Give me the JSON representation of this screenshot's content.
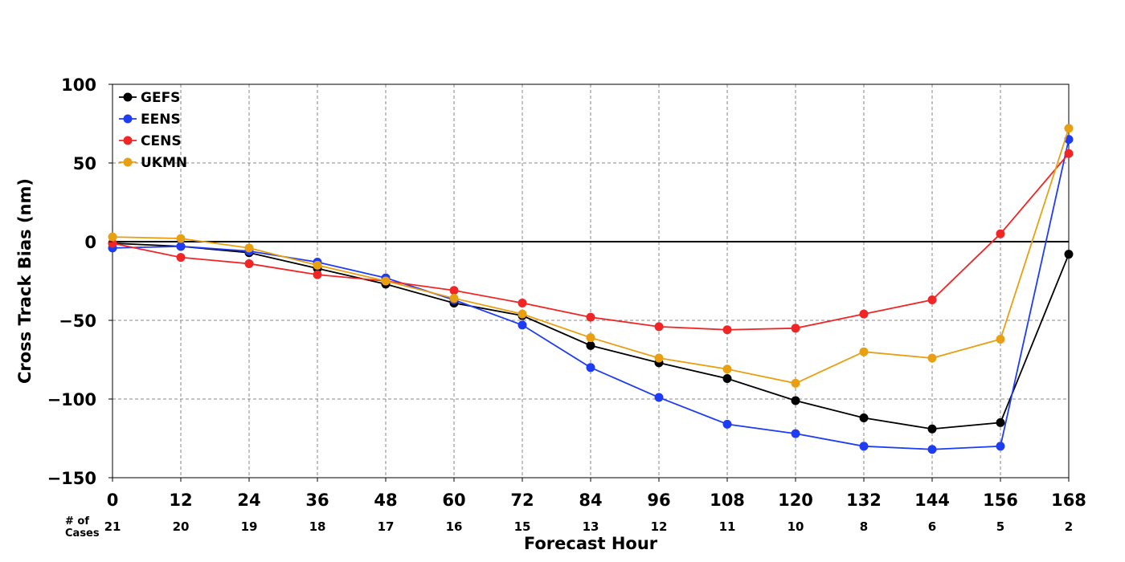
{
  "chart_data": {
    "type": "line",
    "xlabel": "Forecast Hour",
    "ylabel": "Cross Track Bias (nm)",
    "x": [
      0,
      12,
      24,
      36,
      48,
      60,
      72,
      84,
      96,
      108,
      120,
      132,
      144,
      156,
      168
    ],
    "xlim": [
      0,
      168
    ],
    "ylim": [
      -150,
      100
    ],
    "yticks": [
      100,
      50,
      0,
      -50,
      -100,
      -150
    ],
    "ytick_labels": [
      "100",
      "50",
      "0",
      "−50",
      "−100",
      "−150"
    ],
    "grid": true,
    "legend_position": "top-left",
    "cases_header_line1": "# of",
    "cases_header_line2": "Cases",
    "cases": [
      21,
      20,
      19,
      18,
      17,
      16,
      15,
      13,
      12,
      11,
      10,
      8,
      6,
      5,
      2
    ],
    "series": [
      {
        "name": "GEFS",
        "color": "#000000",
        "values": [
          -1,
          -3,
          -7,
          -17,
          -27,
          -39,
          -47,
          -66,
          -77,
          -87,
          -101,
          -112,
          -119,
          -115,
          -8
        ]
      },
      {
        "name": "EENS",
        "color": "#1f3cf5",
        "values": [
          -4,
          -3,
          -6,
          -13,
          -23,
          -37,
          -53,
          -80,
          -99,
          -116,
          -122,
          -130,
          -132,
          -130,
          65
        ]
      },
      {
        "name": "CENS",
        "color": "#f02626",
        "values": [
          -1,
          -10,
          -14,
          -21,
          -25,
          -31,
          -39,
          -48,
          -54,
          -56,
          -55,
          -46,
          -37,
          5,
          56
        ]
      },
      {
        "name": "UKMN",
        "color": "#e8a012",
        "values": [
          3,
          2,
          -4,
          -15,
          -25,
          -36,
          -46,
          -61,
          -74,
          -81,
          -90,
          -70,
          -74,
          -62,
          72
        ]
      }
    ]
  }
}
